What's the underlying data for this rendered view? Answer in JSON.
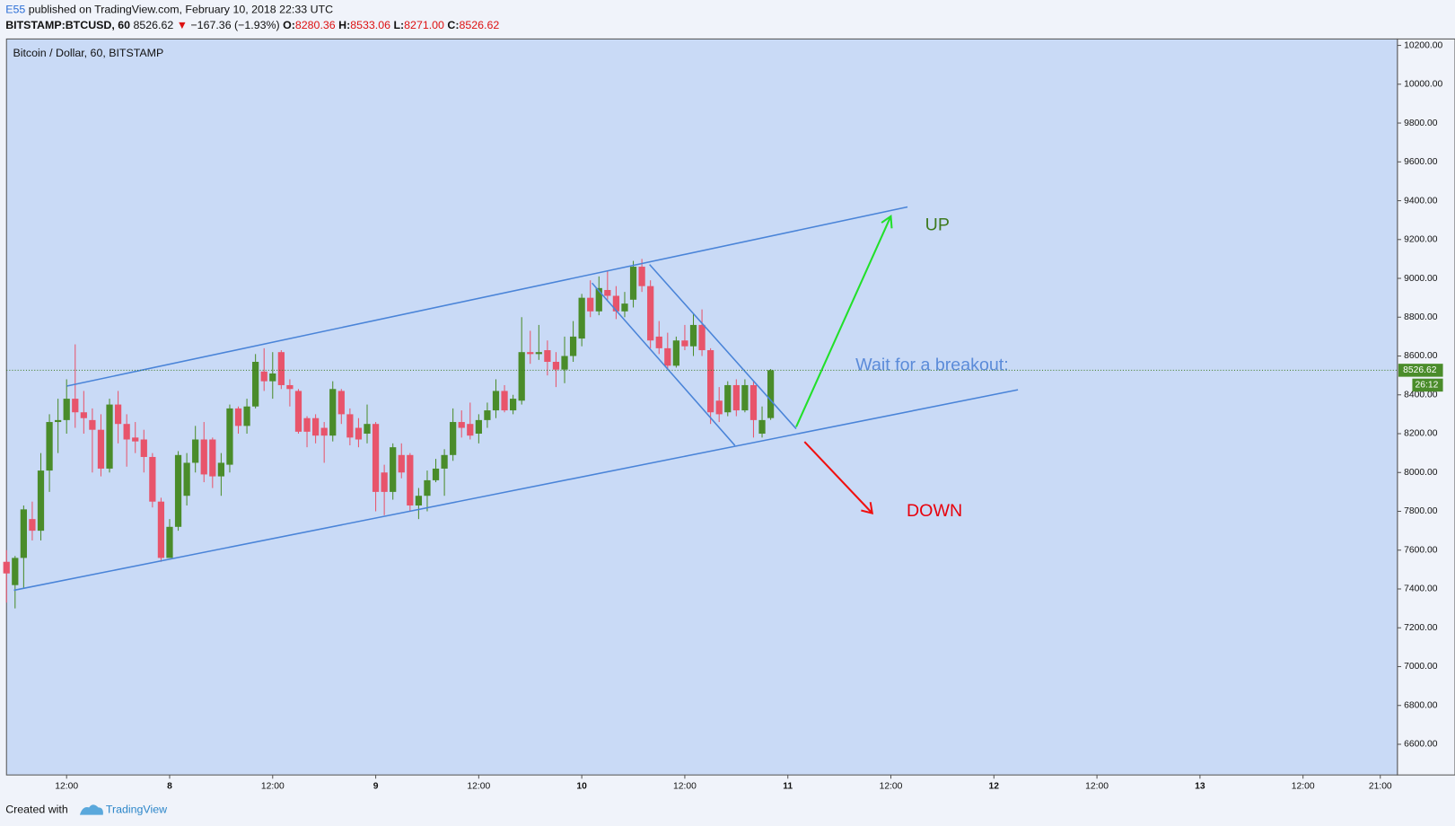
{
  "header": {
    "author": "E55",
    "published": "published on TradingView.com, February 10, 2018 22:33 UTC",
    "symbol": "BITSTAMP:BTCUSD, 60",
    "last": "8526.62",
    "change": "−167.36 (−1.93%)",
    "o_label": "O:",
    "o": "8280.36",
    "h_label": "H:",
    "h": "8533.06",
    "l_label": "L:",
    "l": "8271.00",
    "c_label": "C:",
    "c": "8526.62"
  },
  "chart_data": {
    "type": "candlestick",
    "title": "Bitcoin / Dollar, 60, BITSTAMP",
    "up_color": "#4a8c2a",
    "down_color": "#e8546b",
    "x": [
      5,
      6,
      7,
      8,
      9,
      10,
      11,
      12,
      13,
      14,
      15,
      16,
      17,
      18,
      19,
      20,
      21,
      22,
      23,
      24,
      25,
      26,
      27,
      28,
      29,
      30,
      31,
      32,
      33,
      34,
      35,
      36,
      37,
      38,
      39,
      40,
      41,
      42,
      43,
      44,
      45,
      46,
      47,
      48,
      49,
      50,
      51,
      52,
      53,
      54,
      55,
      56,
      57,
      58,
      59,
      60,
      61,
      62,
      63,
      64,
      65,
      66,
      67,
      68,
      69,
      70,
      71,
      72,
      73,
      74,
      75,
      76,
      77,
      78,
      79,
      80,
      81,
      82,
      83,
      84,
      85,
      86,
      87,
      88,
      89,
      90,
      91,
      92,
      93,
      94
    ],
    "open": [
      7540,
      7420,
      7560,
      7760,
      7700,
      8010,
      8260,
      8270,
      8380,
      8310,
      8270,
      8220,
      8020,
      8350,
      8250,
      8180,
      8170,
      8080,
      7850,
      7560,
      7720,
      7880,
      8050,
      8170,
      8170,
      7980,
      8040,
      8330,
      8240,
      8340,
      8520,
      8470,
      8620,
      8450,
      8420,
      8280,
      8280,
      8230,
      8190,
      8420,
      8300,
      8230,
      8200,
      8250,
      8000,
      7900,
      8090,
      8090,
      7830,
      7880,
      7960,
      8020,
      8090,
      8260,
      8250,
      8200,
      8270,
      8320,
      8420,
      8320,
      8370,
      8620,
      8610,
      8630,
      8570,
      8530,
      8600,
      8690,
      8900,
      8830,
      8940,
      8910,
      8830,
      8890,
      9060,
      8960,
      8700,
      8640,
      8550,
      8680,
      8650,
      8760,
      8630,
      8370,
      8310,
      8450,
      8320,
      8450,
      8200,
      8280.36
    ],
    "high": [
      7600,
      7570,
      7830,
      7850,
      8100,
      8300,
      8380,
      8480,
      8660,
      8420,
      8330,
      8300,
      8380,
      8420,
      8300,
      8260,
      8220,
      8100,
      7870,
      7760,
      8110,
      8100,
      8240,
      8260,
      8180,
      8100,
      8350,
      8340,
      8380,
      8610,
      8640,
      8620,
      8630,
      8480,
      8430,
      8290,
      8300,
      8260,
      8470,
      8430,
      8330,
      8280,
      8350,
      8260,
      8040,
      8150,
      8150,
      8100,
      7920,
      8010,
      8070,
      8120,
      8330,
      8320,
      8360,
      8300,
      8360,
      8480,
      8450,
      8400,
      8800,
      8730,
      8760,
      8680,
      8620,
      8700,
      8780,
      8920,
      8990,
      9010,
      9040,
      8960,
      8930,
      9090,
      9100,
      8990,
      8780,
      8720,
      8700,
      8760,
      8820,
      8840,
      8640,
      8440,
      8470,
      8480,
      8480,
      8470,
      8340,
      8533.06
    ],
    "low": [
      7330,
      7300,
      7400,
      7650,
      7650,
      7900,
      8100,
      8200,
      8230,
      8200,
      8000,
      7980,
      8000,
      8150,
      8030,
      8100,
      8000,
      7820,
      7540,
      7560,
      7700,
      7830,
      8000,
      7950,
      7920,
      7880,
      8000,
      8200,
      8200,
      8330,
      8420,
      8380,
      8430,
      8340,
      8200,
      8130,
      8150,
      8050,
      8160,
      8250,
      8140,
      8130,
      8150,
      7800,
      7780,
      7860,
      7970,
      7800,
      7760,
      7800,
      7950,
      7880,
      8060,
      8180,
      8170,
      8150,
      8230,
      8280,
      8310,
      8300,
      8350,
      8560,
      8580,
      8500,
      8440,
      8460,
      8570,
      8650,
      8800,
      8810,
      8890,
      8790,
      8800,
      8850,
      8930,
      8640,
      8610,
      8530,
      8540,
      8630,
      8600,
      8600,
      8250,
      8260,
      8290,
      8290,
      8310,
      8180,
      8180,
      8271.0
    ],
    "close": [
      7480,
      7560,
      7810,
      7700,
      8010,
      8260,
      8270,
      8380,
      8310,
      8280,
      8220,
      8020,
      8350,
      8250,
      8170,
      8160,
      8080,
      7850,
      7560,
      7720,
      8090,
      8050,
      8170,
      7990,
      7980,
      8050,
      8330,
      8240,
      8340,
      8570,
      8470,
      8510,
      8450,
      8430,
      8210,
      8210,
      8190,
      8190,
      8430,
      8300,
      8180,
      8170,
      8250,
      7900,
      7900,
      8130,
      8000,
      7830,
      7880,
      7960,
      8020,
      8090,
      8260,
      8230,
      8190,
      8270,
      8320,
      8420,
      8320,
      8380,
      8620,
      8610,
      8620,
      8570,
      8530,
      8600,
      8700,
      8900,
      8830,
      8950,
      8910,
      8830,
      8870,
      9060,
      8960,
      8680,
      8640,
      8550,
      8680,
      8650,
      8760,
      8630,
      8310,
      8300,
      8450,
      8320,
      8450,
      8270,
      8270,
      8526.62
    ],
    "xlim": [
      5,
      167
    ],
    "xticks": [
      {
        "value": 12,
        "label": "12:00"
      },
      {
        "value": 24,
        "label": "8"
      },
      {
        "value": 36,
        "label": "12:00"
      },
      {
        "value": 48,
        "label": "9"
      },
      {
        "value": 60,
        "label": "12:00"
      },
      {
        "value": 72,
        "label": "10"
      },
      {
        "value": 84,
        "label": "12:00"
      },
      {
        "value": 96,
        "label": "11"
      },
      {
        "value": 108,
        "label": "12:00"
      },
      {
        "value": 120,
        "label": "12"
      },
      {
        "value": 132,
        "label": "12:00"
      },
      {
        "value": 144,
        "label": "13"
      },
      {
        "value": 156,
        "label": "12:00"
      },
      {
        "value": 165,
        "label": "21:00"
      }
    ],
    "ylim": [
      6442,
      10233
    ],
    "yticks": [
      {
        "value": 6600,
        "label": "6600.00"
      },
      {
        "value": 6800,
        "label": "6800.00"
      },
      {
        "value": 7000,
        "label": "7000.00"
      },
      {
        "value": 7200,
        "label": "7200.00"
      },
      {
        "value": 7400,
        "label": "7400.00"
      },
      {
        "value": 7600,
        "label": "7600.00"
      },
      {
        "value": 7800,
        "label": "7800.00"
      },
      {
        "value": 8000,
        "label": "8000.00"
      },
      {
        "value": 8200,
        "label": "8200.00"
      },
      {
        "value": 8400,
        "label": "8400.00"
      },
      {
        "value": 8600,
        "label": "8600.00"
      },
      {
        "value": 8800,
        "label": "8800.00"
      },
      {
        "value": 9000,
        "label": "9000.00"
      },
      {
        "value": 9200,
        "label": "9200.00"
      },
      {
        "value": 9400,
        "label": "9400.00"
      },
      {
        "value": 9600,
        "label": "9600.00"
      },
      {
        "value": 9800,
        "label": "9800.00"
      },
      {
        "value": 10000,
        "label": "10000.00"
      },
      {
        "value": 10200,
        "label": "10200.00"
      }
    ],
    "last_price": 8526.62,
    "countdown": "26:12",
    "annotations": {
      "up": "UP",
      "wait": "Wait for a breakout:",
      "down": "DOWN"
    }
  },
  "footer": {
    "created": "Created with",
    "brand": "TradingView"
  }
}
